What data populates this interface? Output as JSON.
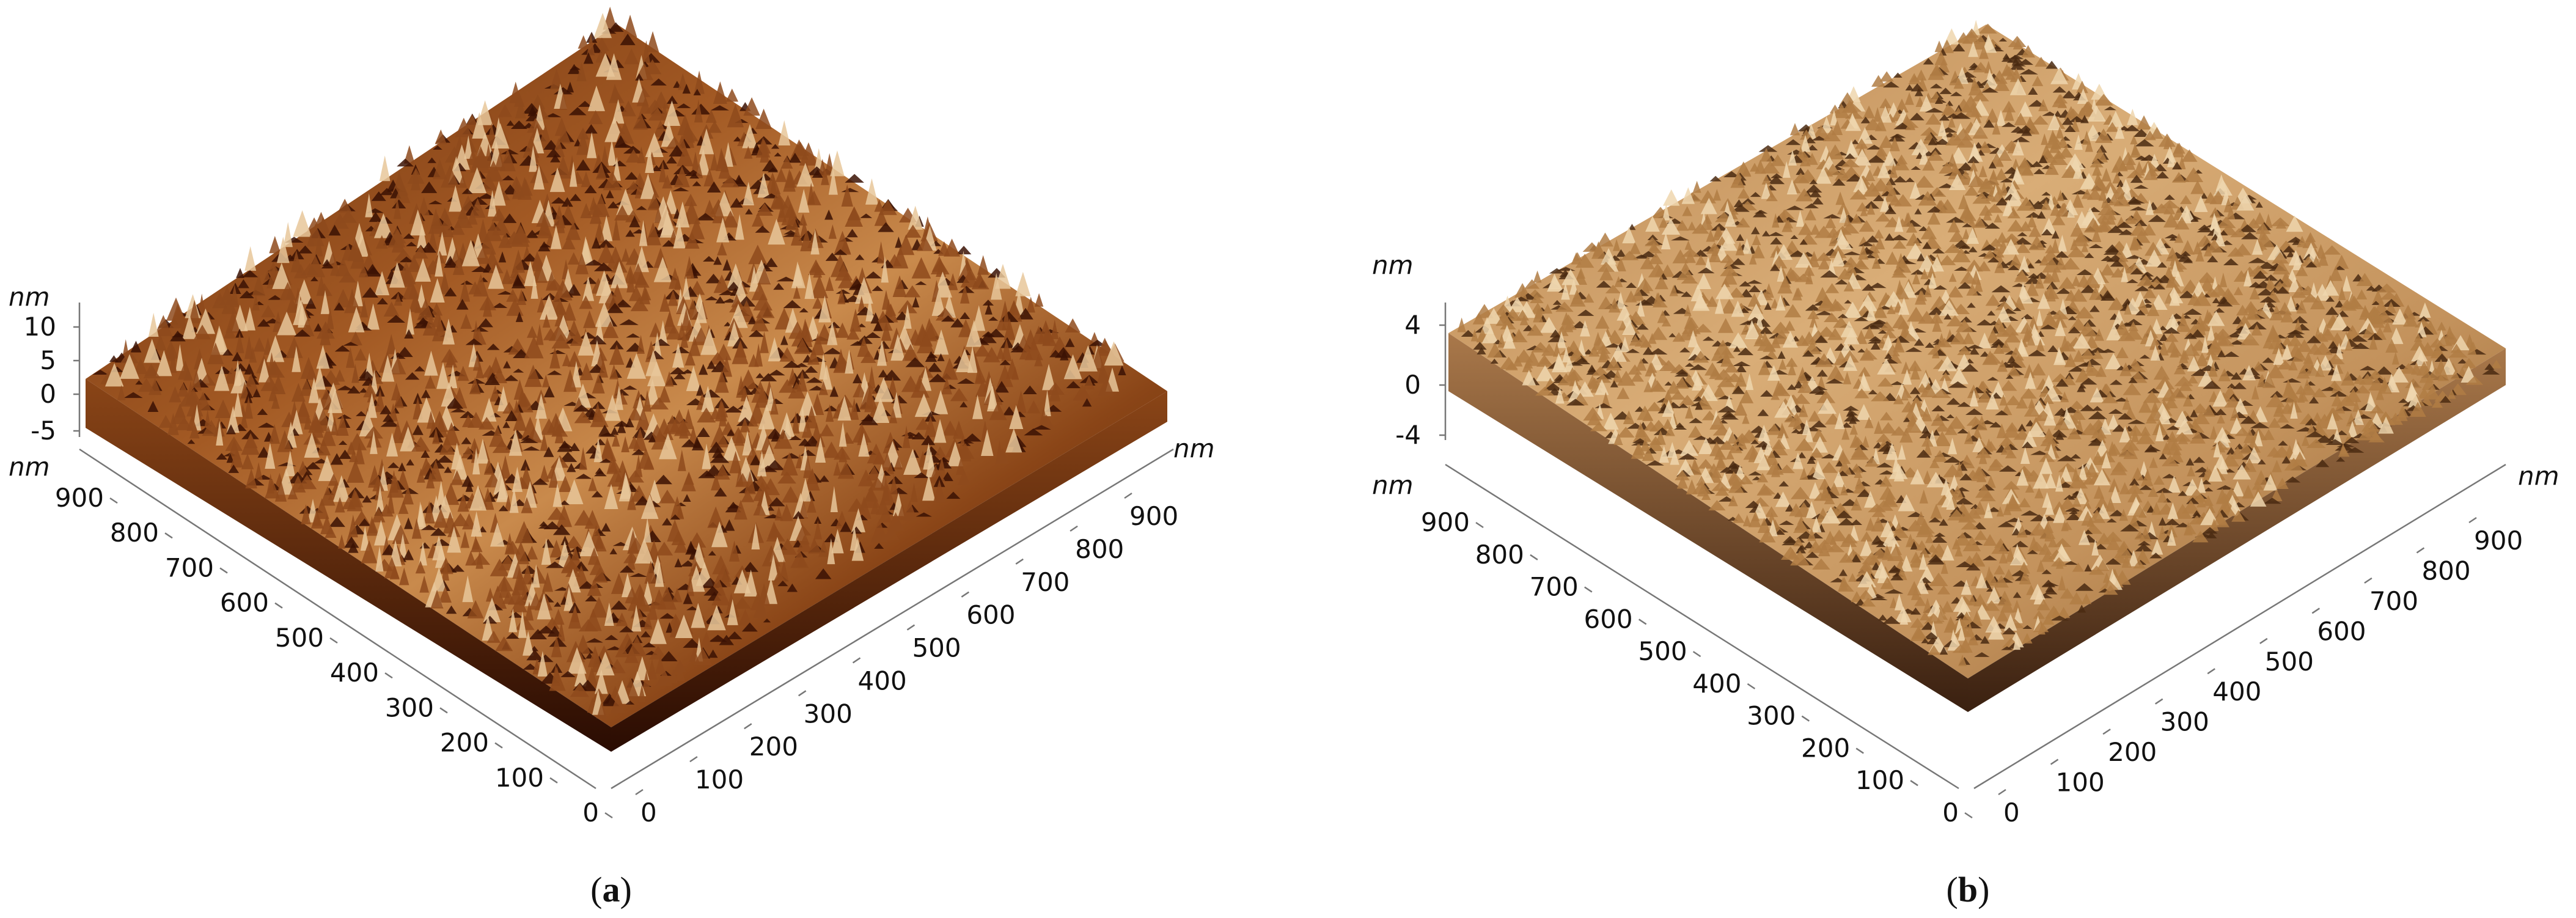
{
  "panels": [
    {
      "id": "a",
      "caption_letter": "a",
      "unit": "nm",
      "z_ticks": [
        "10",
        "5",
        "0",
        "-5"
      ],
      "y_ticks": [
        "900",
        "800",
        "700",
        "600",
        "500",
        "400",
        "300",
        "200",
        "100",
        "0"
      ],
      "x_ticks": [
        "0",
        "100",
        "200",
        "300",
        "400",
        "500",
        "600",
        "700",
        "800",
        "900"
      ],
      "palette": {
        "dark": "#3b1203",
        "mid": "#8e4a1c",
        "light": "#e8c79a"
      }
    },
    {
      "id": "b",
      "caption_letter": "b",
      "unit": "nm",
      "z_ticks": [
        "4",
        "0",
        "-4"
      ],
      "y_ticks": [
        "900",
        "800",
        "700",
        "600",
        "500",
        "400",
        "300",
        "200",
        "100",
        "0"
      ],
      "x_ticks": [
        "0",
        "100",
        "200",
        "300",
        "400",
        "500",
        "600",
        "700",
        "800",
        "900"
      ],
      "palette": {
        "dark": "#4a2a12",
        "mid": "#b07d44",
        "light": "#efd6ae"
      }
    }
  ]
}
